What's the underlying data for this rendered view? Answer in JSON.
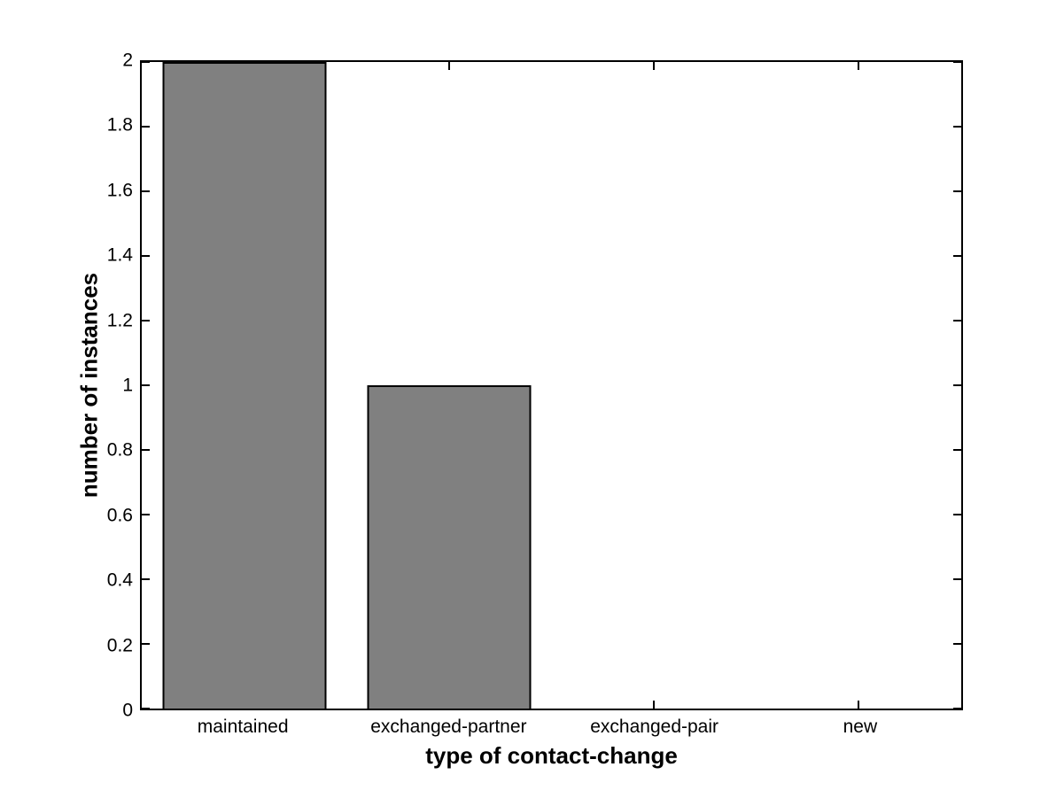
{
  "figure": {
    "background_color": "#ffffff",
    "axis_color": "#000000",
    "text_color": "#000000"
  },
  "chart_data": {
    "type": "bar",
    "title": "",
    "xlabel": "type of contact-change",
    "ylabel": "number of instances",
    "categories": [
      "maintained",
      "exchanged-partner",
      "exchanged-pair",
      "new"
    ],
    "values": [
      2,
      1,
      0,
      0
    ],
    "ylim": [
      0,
      2
    ],
    "yticks": [
      {
        "value": 0,
        "label": "0"
      },
      {
        "value": 0.2,
        "label": "0.2"
      },
      {
        "value": 0.4,
        "label": "0.4"
      },
      {
        "value": 0.6,
        "label": "0.6"
      },
      {
        "value": 0.8,
        "label": "0.8"
      },
      {
        "value": 1,
        "label": "1"
      },
      {
        "value": 1.2,
        "label": "1.2"
      },
      {
        "value": 1.4,
        "label": "1.4"
      },
      {
        "value": 1.6,
        "label": "1.6"
      },
      {
        "value": 1.8,
        "label": "1.8"
      },
      {
        "value": 2,
        "label": "2"
      }
    ],
    "bar_color": "#808080",
    "bar_edge_color": "#000000",
    "bar_width_fraction": 0.8,
    "grid": false,
    "legend": null,
    "tick_direction": "in",
    "box": true
  }
}
